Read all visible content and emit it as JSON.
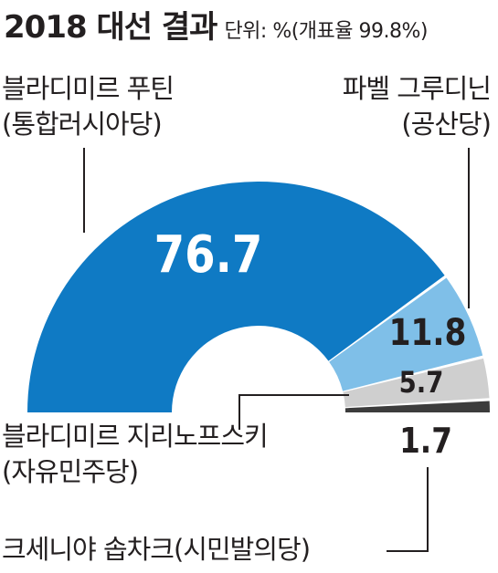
{
  "header": {
    "title": "2018 대선 결과",
    "unit": "단위: %(개표율 99.8%)"
  },
  "colors": {
    "putin": "#0f7ac4",
    "grudinin": "#7fbfe8",
    "zhirinovsky": "#cfcfcf",
    "sobchak": "#3c3c3c",
    "leader_line": "#231f20",
    "value_on_dark": "#ffffff",
    "value_on_light": "#231f20"
  },
  "candidates": {
    "putin": {
      "name": "블라디미르 푸틴",
      "party": "(통합러시아당)"
    },
    "grudinin": {
      "name": "파벨 그루디닌",
      "party": "(공산당)"
    },
    "zhirinovsky": {
      "name": "블라디미르 지리노프스키",
      "party": "(자유민주당)"
    },
    "sobchak": {
      "name": "크세니야 솝차크(시민발의당)"
    }
  },
  "chart_data": {
    "type": "pie",
    "variant": "half-donut",
    "title": "2018 대선 결과",
    "unit": "%",
    "labels": [
      "블라디미르 푸틴(통합러시아당)",
      "파벨 그루디닌(공산당)",
      "블라디미르 지리노프스키(자유민주당)",
      "크세니야 솝차크(시민발의당)"
    ],
    "values": [
      76.7,
      11.8,
      5.7,
      1.7
    ],
    "value_labels": [
      "76.7",
      "11.8",
      "5.7",
      "1.7"
    ],
    "colors": [
      "#0f7ac4",
      "#7fbfe8",
      "#cfcfcf",
      "#3c3c3c"
    ]
  }
}
